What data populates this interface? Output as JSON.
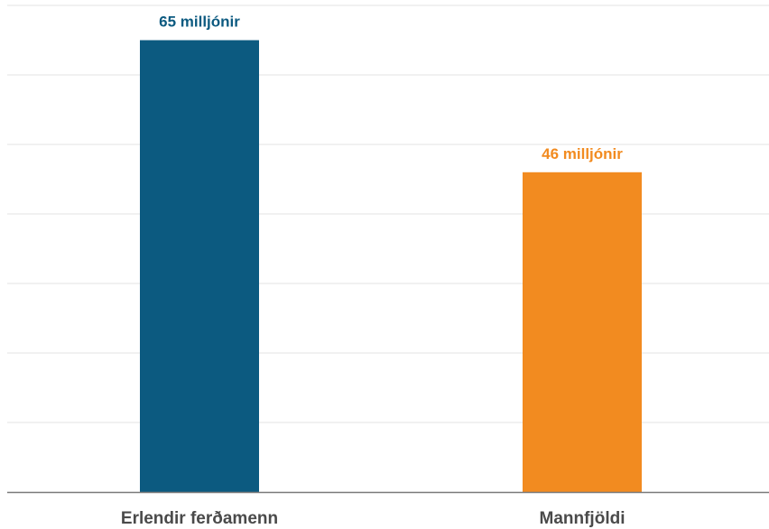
{
  "chart_data": {
    "type": "bar",
    "categories": [
      "Erlendir ferðamenn",
      "Mannfjöldi"
    ],
    "values": [
      65,
      46
    ],
    "data_labels": [
      "65 milljónir",
      "46 milljónir"
    ],
    "colors": [
      "#0c5a80",
      "#f28b20"
    ],
    "title": "",
    "xlabel": "",
    "ylabel": "",
    "ylim": [
      0,
      70
    ],
    "y_gridline_step": 10,
    "grid": true,
    "legend": "none"
  }
}
